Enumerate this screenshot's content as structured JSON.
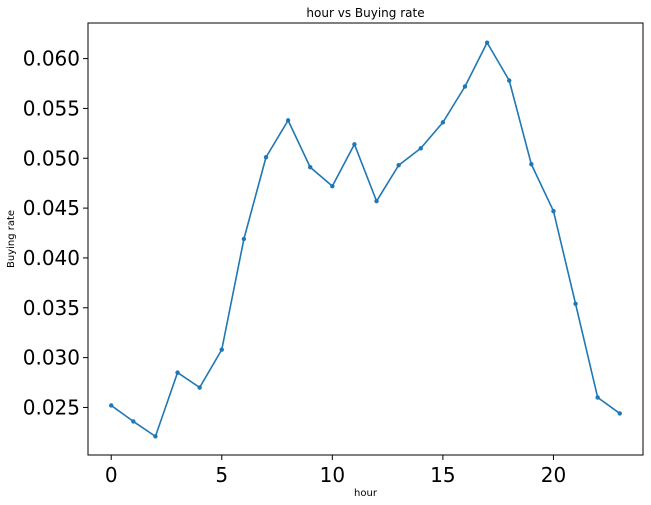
{
  "chart_data": {
    "type": "line",
    "title": "hour vs Buying rate",
    "xlabel": "hour",
    "ylabel": "Buying rate",
    "x": [
      0,
      1,
      2,
      3,
      4,
      5,
      6,
      7,
      8,
      9,
      10,
      11,
      12,
      13,
      14,
      15,
      16,
      17,
      18,
      19,
      20,
      21,
      22,
      23
    ],
    "series": [
      {
        "values": [
          0.0252,
          0.0236,
          0.0221,
          0.0285,
          0.027,
          0.0308,
          0.0419,
          0.0501,
          0.0538,
          0.0491,
          0.0472,
          0.0514,
          0.0457,
          0.0493,
          0.051,
          0.0536,
          0.0572,
          0.0616,
          0.0578,
          0.0494,
          0.0447,
          0.0354,
          0.026,
          0.0244
        ],
        "color": "#1f77b4",
        "marker": "circle"
      }
    ],
    "xlim": [
      -1.05,
      24.05
    ],
    "ylim": [
      0.02023,
      0.06357
    ],
    "xticks": [
      0,
      5,
      10,
      15,
      20
    ],
    "xtick_labels": [
      "0",
      "5",
      "10",
      "15",
      "20"
    ],
    "yticks": [
      0.025,
      0.03,
      0.035,
      0.04,
      0.045,
      0.05,
      0.055,
      0.06
    ],
    "ytick_labels": [
      "0.025",
      "0.030",
      "0.035",
      "0.040",
      "0.045",
      "0.050",
      "0.055",
      "0.060"
    ],
    "grid": false,
    "legend": "none"
  }
}
